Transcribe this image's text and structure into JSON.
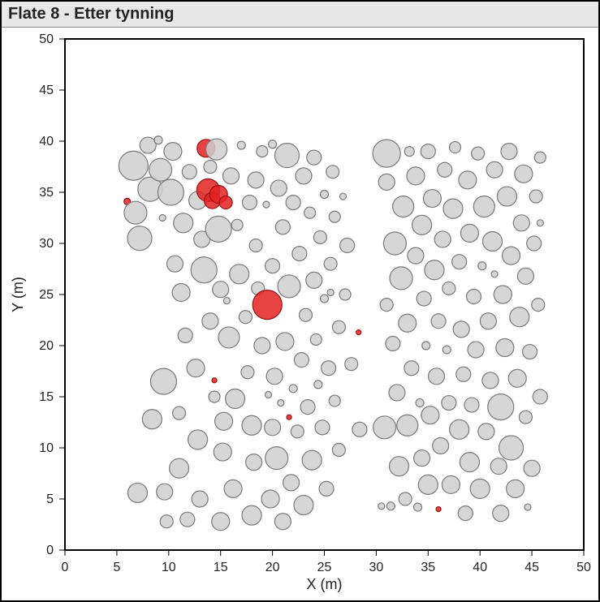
{
  "title": "Flate 8 - Etter tynning",
  "chart": {
    "type": "scatter",
    "xlabel": "X (m)",
    "ylabel": "Y (m)",
    "label_fontsize": 18,
    "tick_fontsize": 16,
    "xlim": [
      0,
      50
    ],
    "ylim": [
      0,
      50
    ],
    "xtick_step": 5,
    "ytick_step": 5,
    "background_color": "#ffffff",
    "plot_border_color": "#000000",
    "colors": {
      "gray_fill": "#cfcfcf",
      "gray_stroke": "#7a7a7a",
      "red_fill": "#e32222",
      "red_stroke": "#9c0f0f"
    },
    "fill_opacity": 0.85,
    "stroke_width": 1.2,
    "points": [
      {
        "x": 6.0,
        "y": 34.1,
        "r": 4,
        "c": "red"
      },
      {
        "x": 6.6,
        "y": 37.6,
        "r": 18,
        "c": "gray"
      },
      {
        "x": 6.8,
        "y": 33.0,
        "r": 14,
        "c": "gray"
      },
      {
        "x": 7.0,
        "y": 5.6,
        "r": 12,
        "c": "gray"
      },
      {
        "x": 7.2,
        "y": 30.5,
        "r": 15,
        "c": "gray"
      },
      {
        "x": 8.0,
        "y": 39.6,
        "r": 10,
        "c": "gray"
      },
      {
        "x": 8.2,
        "y": 35.3,
        "r": 15,
        "c": "gray"
      },
      {
        "x": 8.4,
        "y": 12.8,
        "r": 12,
        "c": "gray"
      },
      {
        "x": 9.0,
        "y": 40.1,
        "r": 5,
        "c": "gray"
      },
      {
        "x": 9.2,
        "y": 37.2,
        "r": 14,
        "c": "gray"
      },
      {
        "x": 9.4,
        "y": 32.5,
        "r": 4,
        "c": "gray"
      },
      {
        "x": 9.5,
        "y": 16.5,
        "r": 16,
        "c": "gray"
      },
      {
        "x": 9.6,
        "y": 5.7,
        "r": 10,
        "c": "gray"
      },
      {
        "x": 9.8,
        "y": 2.8,
        "r": 8,
        "c": "gray"
      },
      {
        "x": 10.2,
        "y": 35.0,
        "r": 16,
        "c": "gray"
      },
      {
        "x": 10.4,
        "y": 39.0,
        "r": 11,
        "c": "gray"
      },
      {
        "x": 10.6,
        "y": 28.0,
        "r": 10,
        "c": "gray"
      },
      {
        "x": 11.0,
        "y": 13.4,
        "r": 8,
        "c": "gray"
      },
      {
        "x": 11.0,
        "y": 8.0,
        "r": 12,
        "c": "gray"
      },
      {
        "x": 11.2,
        "y": 25.2,
        "r": 11,
        "c": "gray"
      },
      {
        "x": 11.4,
        "y": 32.0,
        "r": 12,
        "c": "gray"
      },
      {
        "x": 11.6,
        "y": 21.0,
        "r": 9,
        "c": "gray"
      },
      {
        "x": 11.8,
        "y": 3.0,
        "r": 9,
        "c": "gray"
      },
      {
        "x": 12.0,
        "y": 37.0,
        "r": 9,
        "c": "gray"
      },
      {
        "x": 12.6,
        "y": 17.8,
        "r": 11,
        "c": "gray"
      },
      {
        "x": 12.8,
        "y": 34.2,
        "r": 11,
        "c": "gray"
      },
      {
        "x": 12.8,
        "y": 10.8,
        "r": 12,
        "c": "gray"
      },
      {
        "x": 13.0,
        "y": 5.0,
        "r": 10,
        "c": "gray"
      },
      {
        "x": 13.2,
        "y": 30.4,
        "r": 10,
        "c": "gray"
      },
      {
        "x": 13.4,
        "y": 27.4,
        "r": 16,
        "c": "gray"
      },
      {
        "x": 13.6,
        "y": 39.3,
        "r": 11,
        "c": "red"
      },
      {
        "x": 13.8,
        "y": 35.2,
        "r": 14,
        "c": "red"
      },
      {
        "x": 14.0,
        "y": 22.4,
        "r": 10,
        "c": "gray"
      },
      {
        "x": 14.0,
        "y": 37.5,
        "r": 8,
        "c": "gray"
      },
      {
        "x": 14.2,
        "y": 34.2,
        "r": 10,
        "c": "red"
      },
      {
        "x": 14.4,
        "y": 15.0,
        "r": 7,
        "c": "gray"
      },
      {
        "x": 14.4,
        "y": 16.6,
        "r": 3,
        "c": "red"
      },
      {
        "x": 14.6,
        "y": 39.2,
        "r": 13,
        "c": "gray"
      },
      {
        "x": 14.8,
        "y": 31.4,
        "r": 16,
        "c": "gray"
      },
      {
        "x": 14.8,
        "y": 34.8,
        "r": 11,
        "c": "red"
      },
      {
        "x": 15.0,
        "y": 2.8,
        "r": 11,
        "c": "gray"
      },
      {
        "x": 15.0,
        "y": 25.5,
        "r": 10,
        "c": "gray"
      },
      {
        "x": 15.2,
        "y": 9.6,
        "r": 11,
        "c": "gray"
      },
      {
        "x": 15.3,
        "y": 12.6,
        "r": 11,
        "c": "gray"
      },
      {
        "x": 15.5,
        "y": 34.0,
        "r": 8,
        "c": "red"
      },
      {
        "x": 15.6,
        "y": 24.4,
        "r": 4,
        "c": "gray"
      },
      {
        "x": 15.8,
        "y": 20.8,
        "r": 13,
        "c": "gray"
      },
      {
        "x": 16.0,
        "y": 36.6,
        "r": 10,
        "c": "gray"
      },
      {
        "x": 16.2,
        "y": 6.0,
        "r": 11,
        "c": "gray"
      },
      {
        "x": 16.4,
        "y": 14.8,
        "r": 12,
        "c": "gray"
      },
      {
        "x": 16.6,
        "y": 31.8,
        "r": 7,
        "c": "gray"
      },
      {
        "x": 16.8,
        "y": 27.0,
        "r": 12,
        "c": "gray"
      },
      {
        "x": 17.0,
        "y": 39.6,
        "r": 5,
        "c": "gray"
      },
      {
        "x": 17.4,
        "y": 22.8,
        "r": 8,
        "c": "gray"
      },
      {
        "x": 17.6,
        "y": 17.4,
        "r": 8,
        "c": "gray"
      },
      {
        "x": 17.8,
        "y": 34.0,
        "r": 9,
        "c": "gray"
      },
      {
        "x": 18.0,
        "y": 3.4,
        "r": 12,
        "c": "gray"
      },
      {
        "x": 18.0,
        "y": 12.2,
        "r": 12,
        "c": "gray"
      },
      {
        "x": 18.2,
        "y": 8.6,
        "r": 10,
        "c": "gray"
      },
      {
        "x": 18.4,
        "y": 29.8,
        "r": 8,
        "c": "gray"
      },
      {
        "x": 18.4,
        "y": 36.2,
        "r": 10,
        "c": "gray"
      },
      {
        "x": 18.6,
        "y": 25.6,
        "r": 8,
        "c": "gray"
      },
      {
        "x": 19.0,
        "y": 39.0,
        "r": 7,
        "c": "gray"
      },
      {
        "x": 19.0,
        "y": 20.0,
        "r": 10,
        "c": "gray"
      },
      {
        "x": 19.4,
        "y": 33.8,
        "r": 4,
        "c": "gray"
      },
      {
        "x": 19.5,
        "y": 24.0,
        "r": 18,
        "c": "red"
      },
      {
        "x": 19.6,
        "y": 15.2,
        "r": 4,
        "c": "gray"
      },
      {
        "x": 19.8,
        "y": 5.0,
        "r": 11,
        "c": "gray"
      },
      {
        "x": 20.0,
        "y": 12.0,
        "r": 10,
        "c": "gray"
      },
      {
        "x": 20.0,
        "y": 27.8,
        "r": 9,
        "c": "gray"
      },
      {
        "x": 20.0,
        "y": 39.7,
        "r": 5,
        "c": "gray"
      },
      {
        "x": 20.2,
        "y": 17.0,
        "r": 10,
        "c": "gray"
      },
      {
        "x": 20.4,
        "y": 9.0,
        "r": 14,
        "c": "gray"
      },
      {
        "x": 20.6,
        "y": 35.4,
        "r": 10,
        "c": "gray"
      },
      {
        "x": 20.8,
        "y": 14.4,
        "r": 4,
        "c": "gray"
      },
      {
        "x": 21.0,
        "y": 2.8,
        "r": 10,
        "c": "gray"
      },
      {
        "x": 21.0,
        "y": 31.6,
        "r": 9,
        "c": "gray"
      },
      {
        "x": 21.2,
        "y": 20.4,
        "r": 11,
        "c": "gray"
      },
      {
        "x": 21.4,
        "y": 38.6,
        "r": 15,
        "c": "gray"
      },
      {
        "x": 21.6,
        "y": 25.8,
        "r": 14,
        "c": "gray"
      },
      {
        "x": 21.6,
        "y": 13.0,
        "r": 3,
        "c": "red"
      },
      {
        "x": 21.8,
        "y": 6.6,
        "r": 10,
        "c": "gray"
      },
      {
        "x": 22.0,
        "y": 15.8,
        "r": 5,
        "c": "gray"
      },
      {
        "x": 22.0,
        "y": 34.0,
        "r": 9,
        "c": "gray"
      },
      {
        "x": 22.4,
        "y": 11.6,
        "r": 8,
        "c": "gray"
      },
      {
        "x": 22.6,
        "y": 29.0,
        "r": 9,
        "c": "gray"
      },
      {
        "x": 22.8,
        "y": 18.6,
        "r": 9,
        "c": "gray"
      },
      {
        "x": 23.0,
        "y": 36.6,
        "r": 10,
        "c": "gray"
      },
      {
        "x": 23.0,
        "y": 4.4,
        "r": 12,
        "c": "gray"
      },
      {
        "x": 23.2,
        "y": 23.0,
        "r": 8,
        "c": "gray"
      },
      {
        "x": 23.4,
        "y": 14.0,
        "r": 9,
        "c": "gray"
      },
      {
        "x": 23.6,
        "y": 33.0,
        "r": 7,
        "c": "gray"
      },
      {
        "x": 23.8,
        "y": 8.8,
        "r": 12,
        "c": "gray"
      },
      {
        "x": 24.0,
        "y": 26.4,
        "r": 10,
        "c": "gray"
      },
      {
        "x": 24.0,
        "y": 38.4,
        "r": 9,
        "c": "gray"
      },
      {
        "x": 24.2,
        "y": 20.6,
        "r": 7,
        "c": "gray"
      },
      {
        "x": 24.4,
        "y": 16.2,
        "r": 5,
        "c": "gray"
      },
      {
        "x": 24.6,
        "y": 30.6,
        "r": 8,
        "c": "gray"
      },
      {
        "x": 24.8,
        "y": 12.0,
        "r": 9,
        "c": "gray"
      },
      {
        "x": 25.0,
        "y": 34.8,
        "r": 5,
        "c": "gray"
      },
      {
        "x": 25.0,
        "y": 24.6,
        "r": 5,
        "c": "gray"
      },
      {
        "x": 25.2,
        "y": 6.0,
        "r": 9,
        "c": "gray"
      },
      {
        "x": 25.4,
        "y": 17.8,
        "r": 9,
        "c": "gray"
      },
      {
        "x": 25.6,
        "y": 28.0,
        "r": 8,
        "c": "gray"
      },
      {
        "x": 25.6,
        "y": 25.2,
        "r": 4,
        "c": "gray"
      },
      {
        "x": 25.8,
        "y": 37.0,
        "r": 8,
        "c": "gray"
      },
      {
        "x": 26.0,
        "y": 14.6,
        "r": 7,
        "c": "gray"
      },
      {
        "x": 26.0,
        "y": 32.6,
        "r": 7,
        "c": "gray"
      },
      {
        "x": 26.4,
        "y": 9.8,
        "r": 8,
        "c": "gray"
      },
      {
        "x": 26.4,
        "y": 21.8,
        "r": 8,
        "c": "gray"
      },
      {
        "x": 26.8,
        "y": 34.6,
        "r": 4,
        "c": "gray"
      },
      {
        "x": 27.0,
        "y": 25.0,
        "r": 7,
        "c": "gray"
      },
      {
        "x": 27.2,
        "y": 29.8,
        "r": 9,
        "c": "gray"
      },
      {
        "x": 27.6,
        "y": 18.2,
        "r": 8,
        "c": "gray"
      },
      {
        "x": 28.3,
        "y": 21.3,
        "r": 3,
        "c": "red"
      },
      {
        "x": 28.4,
        "y": 11.8,
        "r": 9,
        "c": "gray"
      },
      {
        "x": 30.5,
        "y": 4.3,
        "r": 4,
        "c": "gray"
      },
      {
        "x": 30.8,
        "y": 12.0,
        "r": 14,
        "c": "gray"
      },
      {
        "x": 31.0,
        "y": 24.0,
        "r": 8,
        "c": "gray"
      },
      {
        "x": 31.0,
        "y": 36.0,
        "r": 10,
        "c": "gray"
      },
      {
        "x": 31.0,
        "y": 38.8,
        "r": 17,
        "c": "gray"
      },
      {
        "x": 31.4,
        "y": 4.3,
        "r": 5,
        "c": "gray"
      },
      {
        "x": 31.6,
        "y": 20.2,
        "r": 9,
        "c": "gray"
      },
      {
        "x": 31.8,
        "y": 30.0,
        "r": 14,
        "c": "gray"
      },
      {
        "x": 32.0,
        "y": 15.4,
        "r": 10,
        "c": "gray"
      },
      {
        "x": 32.2,
        "y": 8.2,
        "r": 12,
        "c": "gray"
      },
      {
        "x": 32.4,
        "y": 26.6,
        "r": 14,
        "c": "gray"
      },
      {
        "x": 32.6,
        "y": 33.6,
        "r": 13,
        "c": "gray"
      },
      {
        "x": 32.8,
        "y": 5.0,
        "r": 8,
        "c": "gray"
      },
      {
        "x": 33.0,
        "y": 22.2,
        "r": 11,
        "c": "gray"
      },
      {
        "x": 33.0,
        "y": 12.2,
        "r": 13,
        "c": "gray"
      },
      {
        "x": 33.2,
        "y": 39.0,
        "r": 6,
        "c": "gray"
      },
      {
        "x": 33.4,
        "y": 17.8,
        "r": 9,
        "c": "gray"
      },
      {
        "x": 33.8,
        "y": 28.8,
        "r": 10,
        "c": "gray"
      },
      {
        "x": 33.8,
        "y": 36.6,
        "r": 11,
        "c": "gray"
      },
      {
        "x": 34.0,
        "y": 4.2,
        "r": 5,
        "c": "gray"
      },
      {
        "x": 34.2,
        "y": 14.4,
        "r": 5,
        "c": "gray"
      },
      {
        "x": 34.4,
        "y": 9.0,
        "r": 10,
        "c": "gray"
      },
      {
        "x": 34.4,
        "y": 31.8,
        "r": 12,
        "c": "gray"
      },
      {
        "x": 34.6,
        "y": 24.6,
        "r": 9,
        "c": "gray"
      },
      {
        "x": 34.8,
        "y": 20.0,
        "r": 5,
        "c": "gray"
      },
      {
        "x": 35.0,
        "y": 6.4,
        "r": 12,
        "c": "gray"
      },
      {
        "x": 35.0,
        "y": 39.0,
        "r": 9,
        "c": "gray"
      },
      {
        "x": 35.2,
        "y": 13.2,
        "r": 11,
        "c": "gray"
      },
      {
        "x": 35.4,
        "y": 34.4,
        "r": 11,
        "c": "gray"
      },
      {
        "x": 35.6,
        "y": 27.4,
        "r": 12,
        "c": "gray"
      },
      {
        "x": 35.8,
        "y": 17.0,
        "r": 10,
        "c": "gray"
      },
      {
        "x": 36.0,
        "y": 4.0,
        "r": 3,
        "c": "red"
      },
      {
        "x": 36.0,
        "y": 22.4,
        "r": 9,
        "c": "gray"
      },
      {
        "x": 36.2,
        "y": 10.2,
        "r": 10,
        "c": "gray"
      },
      {
        "x": 36.4,
        "y": 30.4,
        "r": 10,
        "c": "gray"
      },
      {
        "x": 36.6,
        "y": 37.2,
        "r": 9,
        "c": "gray"
      },
      {
        "x": 36.8,
        "y": 19.6,
        "r": 5,
        "c": "gray"
      },
      {
        "x": 37.0,
        "y": 14.4,
        "r": 9,
        "c": "gray"
      },
      {
        "x": 37.0,
        "y": 25.6,
        "r": 8,
        "c": "gray"
      },
      {
        "x": 37.2,
        "y": 6.4,
        "r": 11,
        "c": "gray"
      },
      {
        "x": 37.4,
        "y": 33.4,
        "r": 12,
        "c": "gray"
      },
      {
        "x": 37.6,
        "y": 39.4,
        "r": 7,
        "c": "gray"
      },
      {
        "x": 38.0,
        "y": 11.8,
        "r": 12,
        "c": "gray"
      },
      {
        "x": 38.0,
        "y": 28.2,
        "r": 9,
        "c": "gray"
      },
      {
        "x": 38.2,
        "y": 21.6,
        "r": 10,
        "c": "gray"
      },
      {
        "x": 38.4,
        "y": 17.2,
        "r": 9,
        "c": "gray"
      },
      {
        "x": 38.6,
        "y": 3.6,
        "r": 9,
        "c": "gray"
      },
      {
        "x": 38.8,
        "y": 36.2,
        "r": 11,
        "c": "gray"
      },
      {
        "x": 39.0,
        "y": 8.6,
        "r": 12,
        "c": "gray"
      },
      {
        "x": 39.0,
        "y": 31.0,
        "r": 11,
        "c": "gray"
      },
      {
        "x": 39.2,
        "y": 14.2,
        "r": 9,
        "c": "gray"
      },
      {
        "x": 39.4,
        "y": 24.8,
        "r": 9,
        "c": "gray"
      },
      {
        "x": 39.6,
        "y": 19.6,
        "r": 10,
        "c": "gray"
      },
      {
        "x": 39.8,
        "y": 38.8,
        "r": 8,
        "c": "gray"
      },
      {
        "x": 40.0,
        "y": 6.0,
        "r": 12,
        "c": "gray"
      },
      {
        "x": 40.2,
        "y": 27.8,
        "r": 5,
        "c": "gray"
      },
      {
        "x": 40.4,
        "y": 33.6,
        "r": 13,
        "c": "gray"
      },
      {
        "x": 40.6,
        "y": 11.6,
        "r": 10,
        "c": "gray"
      },
      {
        "x": 40.8,
        "y": 22.4,
        "r": 10,
        "c": "gray"
      },
      {
        "x": 41.0,
        "y": 16.6,
        "r": 10,
        "c": "gray"
      },
      {
        "x": 41.2,
        "y": 30.2,
        "r": 12,
        "c": "gray"
      },
      {
        "x": 41.4,
        "y": 37.2,
        "r": 10,
        "c": "gray"
      },
      {
        "x": 41.4,
        "y": 27.0,
        "r": 4,
        "c": "gray"
      },
      {
        "x": 41.8,
        "y": 8.2,
        "r": 10,
        "c": "gray"
      },
      {
        "x": 42.0,
        "y": 3.6,
        "r": 10,
        "c": "gray"
      },
      {
        "x": 42.0,
        "y": 14.0,
        "r": 16,
        "c": "gray"
      },
      {
        "x": 42.2,
        "y": 25.0,
        "r": 11,
        "c": "gray"
      },
      {
        "x": 42.4,
        "y": 19.8,
        "r": 11,
        "c": "gray"
      },
      {
        "x": 42.6,
        "y": 34.6,
        "r": 12,
        "c": "gray"
      },
      {
        "x": 42.8,
        "y": 39.0,
        "r": 10,
        "c": "gray"
      },
      {
        "x": 43.0,
        "y": 28.8,
        "r": 11,
        "c": "gray"
      },
      {
        "x": 43.0,
        "y": 10.0,
        "r": 15,
        "c": "gray"
      },
      {
        "x": 43.4,
        "y": 6.0,
        "r": 11,
        "c": "gray"
      },
      {
        "x": 43.6,
        "y": 16.8,
        "r": 11,
        "c": "gray"
      },
      {
        "x": 43.8,
        "y": 22.8,
        "r": 12,
        "c": "gray"
      },
      {
        "x": 44.0,
        "y": 32.0,
        "r": 10,
        "c": "gray"
      },
      {
        "x": 44.2,
        "y": 36.8,
        "r": 11,
        "c": "gray"
      },
      {
        "x": 44.4,
        "y": 13.0,
        "r": 8,
        "c": "gray"
      },
      {
        "x": 44.4,
        "y": 26.8,
        "r": 10,
        "c": "gray"
      },
      {
        "x": 44.6,
        "y": 4.2,
        "r": 4,
        "c": "gray"
      },
      {
        "x": 44.8,
        "y": 19.4,
        "r": 9,
        "c": "gray"
      },
      {
        "x": 45.0,
        "y": 8.0,
        "r": 10,
        "c": "gray"
      },
      {
        "x": 45.2,
        "y": 30.0,
        "r": 9,
        "c": "gray"
      },
      {
        "x": 45.4,
        "y": 34.6,
        "r": 8,
        "c": "gray"
      },
      {
        "x": 45.6,
        "y": 24.0,
        "r": 8,
        "c": "gray"
      },
      {
        "x": 45.8,
        "y": 15.0,
        "r": 9,
        "c": "gray"
      },
      {
        "x": 45.8,
        "y": 38.4,
        "r": 7,
        "c": "gray"
      },
      {
        "x": 45.8,
        "y": 32.0,
        "r": 4,
        "c": "gray"
      }
    ]
  }
}
